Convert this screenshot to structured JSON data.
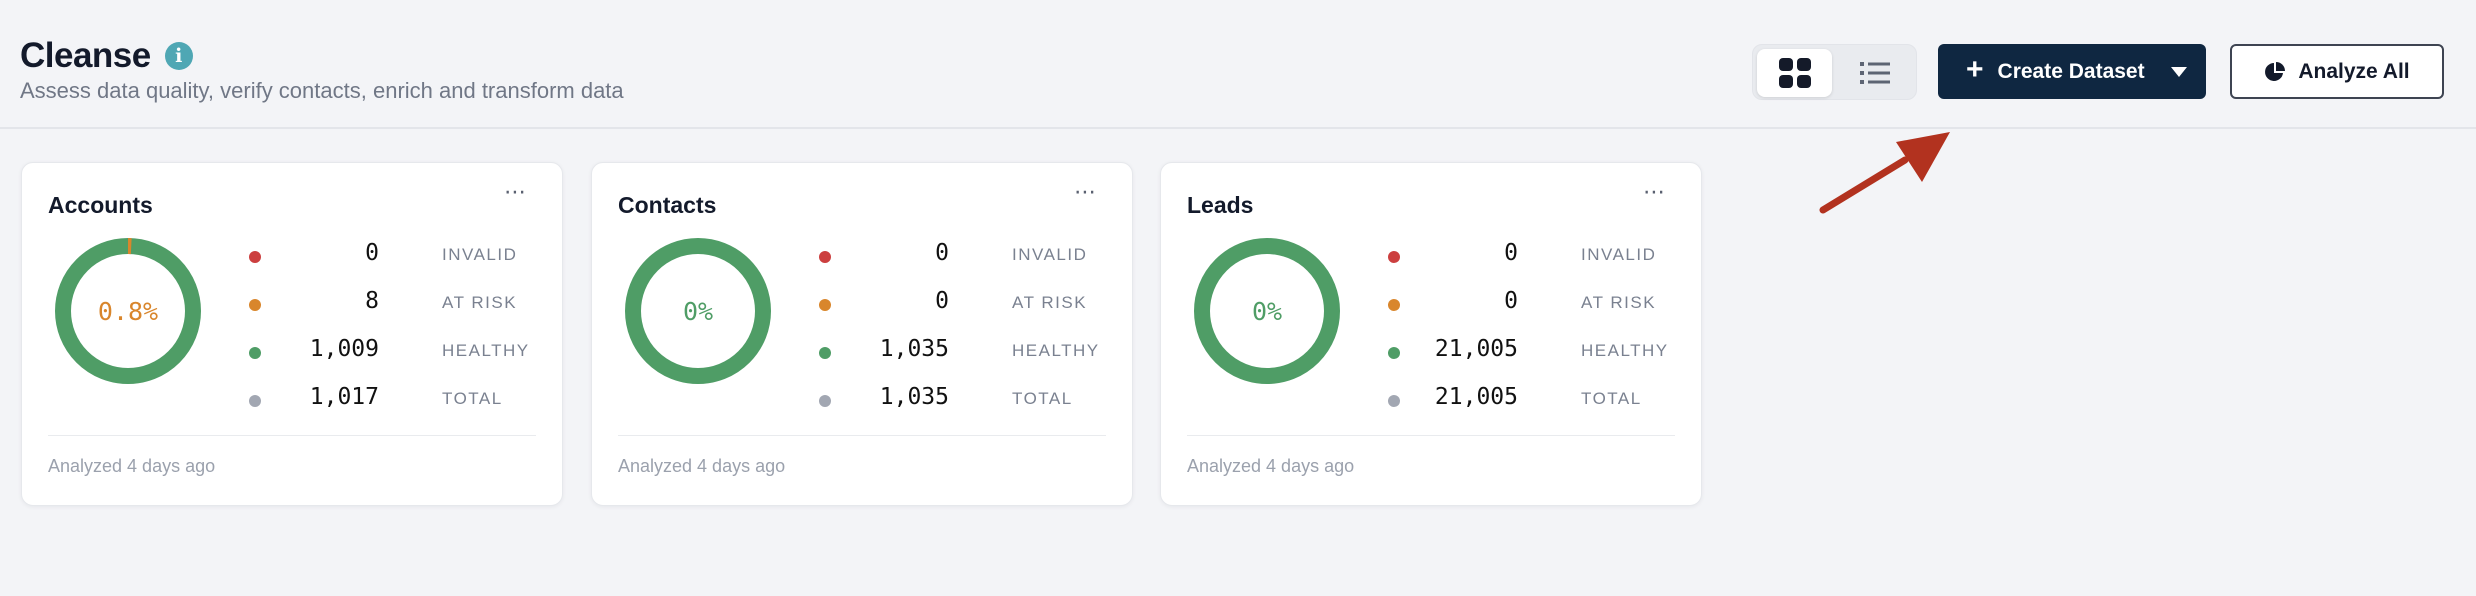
{
  "page": {
    "title": "Cleanse",
    "subtitle": "Assess data quality, verify contacts, enrich and transform data"
  },
  "toolbar": {
    "create_label": "Create Dataset",
    "analyze_label": "Analyze All"
  },
  "colors": {
    "invalid": "#cc3f3f",
    "at_risk": "#d9862c",
    "healthy": "#4f9d66",
    "total": "#a2a7b2",
    "primary": "#0f2741",
    "annotation_arrow": "#b2321f"
  },
  "cards": [
    {
      "title": "Accounts",
      "percent_label": "0.8%",
      "at_risk_fraction": 0.008,
      "stats": [
        {
          "value": "0",
          "label": "INVALID"
        },
        {
          "value": "8",
          "label": "AT RISK"
        },
        {
          "value": "1,009",
          "label": "HEALTHY"
        },
        {
          "value": "1,017",
          "label": "TOTAL"
        }
      ],
      "footer": "Analyzed 4 days ago"
    },
    {
      "title": "Contacts",
      "percent_label": "0%",
      "at_risk_fraction": 0,
      "stats": [
        {
          "value": "0",
          "label": "INVALID"
        },
        {
          "value": "0",
          "label": "AT RISK"
        },
        {
          "value": "1,035",
          "label": "HEALTHY"
        },
        {
          "value": "1,035",
          "label": "TOTAL"
        }
      ],
      "footer": "Analyzed 4 days ago"
    },
    {
      "title": "Leads",
      "percent_label": "0%",
      "at_risk_fraction": 0,
      "stats": [
        {
          "value": "0",
          "label": "INVALID"
        },
        {
          "value": "0",
          "label": "AT RISK"
        },
        {
          "value": "21,005",
          "label": "HEALTHY"
        },
        {
          "value": "21,005",
          "label": "TOTAL"
        }
      ],
      "footer": "Analyzed 4 days ago"
    }
  ]
}
